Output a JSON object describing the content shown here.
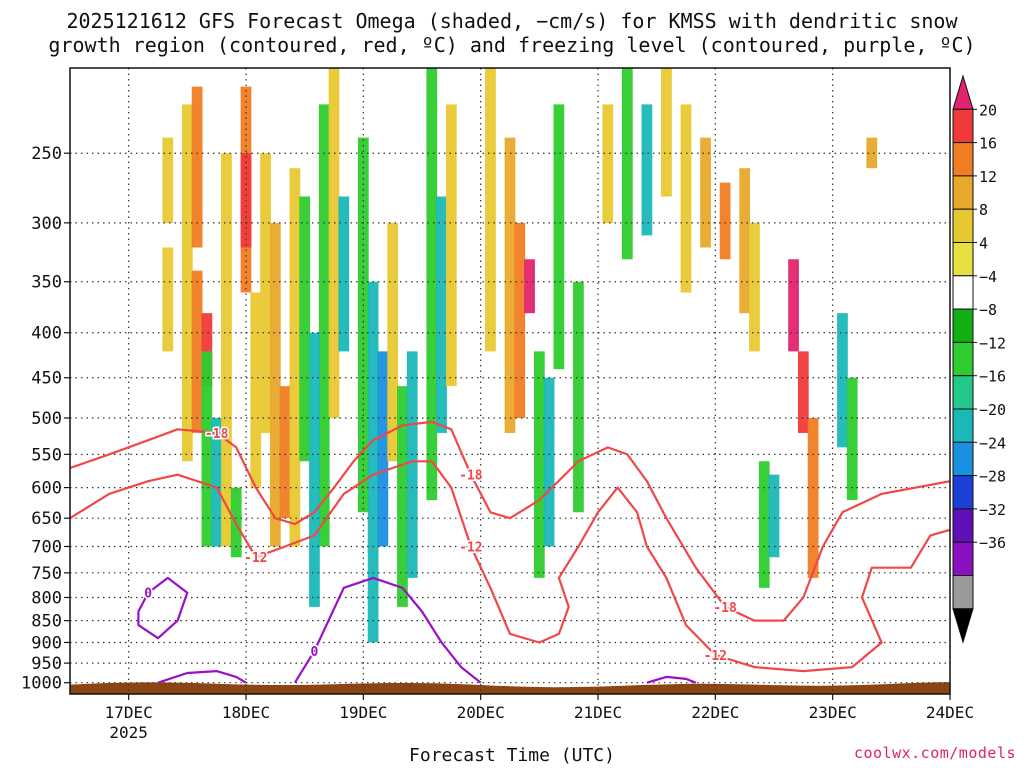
{
  "title": "2025121612 GFS Forecast Omega (shaded, −cm/s) for KMSS with dendritic snow",
  "title_line2": "growth region (contoured, red, ºC) and freezing level (contoured, purple, ºC)",
  "xlabel": "Forecast Time (UTC)",
  "credit": "coolwx.com/models",
  "chart_data": {
    "type": "heatmap",
    "x_axis": {
      "ticks": [
        "17DEC",
        "18DEC",
        "19DEC",
        "20DEC",
        "21DEC",
        "22DEC",
        "23DEC",
        "24DEC"
      ],
      "tick_hours": [
        12,
        36,
        60,
        84,
        108,
        132,
        156,
        180
      ],
      "first_tick_sublabel": "2025",
      "range_hours": [
        0,
        180
      ]
    },
    "y_axis": {
      "ticks": [
        250,
        300,
        350,
        400,
        450,
        500,
        550,
        600,
        650,
        700,
        750,
        800,
        850,
        900,
        950,
        1000
      ],
      "range": [
        200,
        1030
      ],
      "scale": "log",
      "reversed": true
    },
    "grid": true,
    "colorbar": {
      "ticks": [
        "20",
        "16",
        "12",
        "8",
        "4",
        "−4",
        "−8",
        "−12",
        "−16",
        "−20",
        "−24",
        "−28",
        "−32",
        "−36"
      ],
      "colors": [
        "#e0246e",
        "#f03a3a",
        "#f07d22",
        "#e8a82a",
        "#e8c830",
        "#e8e040",
        "#ffffff",
        "#12b012",
        "#2ecc2e",
        "#24c88a",
        "#1ab8b8",
        "#1a90e0",
        "#1a40d8",
        "#6010b8",
        "#8a10c0",
        "#9a9a9a",
        "#000000"
      ]
    },
    "contour_labels": {
      "dgz": [
        "-18",
        "-12"
      ],
      "freezing": [
        "0"
      ]
    },
    "colors": {
      "dgz_contour": "#f04848",
      "freezing_contour": "#9a10c8",
      "terrain": "#8b4513"
    },
    "omega_cells": [
      [
        20,
        240,
        300,
        6
      ],
      [
        20,
        320,
        420,
        6
      ],
      [
        24,
        220,
        560,
        6
      ],
      [
        26,
        210,
        320,
        12
      ],
      [
        26,
        340,
        520,
        12
      ],
      [
        28,
        380,
        460,
        16
      ],
      [
        28,
        420,
        700,
        -10
      ],
      [
        30,
        500,
        700,
        -12
      ],
      [
        32,
        250,
        700,
        6
      ],
      [
        34,
        600,
        720,
        -8
      ],
      [
        36,
        210,
        360,
        12
      ],
      [
        36,
        250,
        320,
        16
      ],
      [
        38,
        360,
        600,
        6
      ],
      [
        40,
        250,
        520,
        6
      ],
      [
        42,
        300,
        700,
        8
      ],
      [
        44,
        460,
        650,
        12
      ],
      [
        46,
        260,
        700,
        6
      ],
      [
        48,
        280,
        560,
        -10
      ],
      [
        52,
        220,
        700,
        -10
      ],
      [
        50,
        400,
        820,
        -12
      ],
      [
        54,
        200,
        500,
        6
      ],
      [
        56,
        280,
        420,
        -14
      ],
      [
        60,
        240,
        640,
        -10
      ],
      [
        62,
        350,
        900,
        -12
      ],
      [
        64,
        420,
        700,
        -16
      ],
      [
        66,
        300,
        560,
        6
      ],
      [
        68,
        460,
        820,
        -8
      ],
      [
        70,
        420,
        760,
        -12
      ],
      [
        74,
        200,
        620,
        -8
      ],
      [
        76,
        280,
        520,
        -14
      ],
      [
        78,
        220,
        460,
        6
      ],
      [
        86,
        200,
        420,
        6
      ],
      [
        90,
        240,
        520,
        8
      ],
      [
        92,
        300,
        500,
        12
      ],
      [
        94,
        330,
        380,
        20
      ],
      [
        96,
        420,
        760,
        -10
      ],
      [
        98,
        450,
        700,
        -12
      ],
      [
        100,
        220,
        440,
        -8
      ],
      [
        104,
        350,
        640,
        -10
      ],
      [
        110,
        220,
        300,
        6
      ],
      [
        114,
        200,
        330,
        -10
      ],
      [
        118,
        220,
        310,
        -12
      ],
      [
        122,
        200,
        280,
        6
      ],
      [
        126,
        220,
        360,
        6
      ],
      [
        130,
        240,
        320,
        8
      ],
      [
        134,
        270,
        330,
        12
      ],
      [
        138,
        260,
        380,
        8
      ],
      [
        140,
        300,
        420,
        6
      ],
      [
        142,
        560,
        780,
        -10
      ],
      [
        144,
        580,
        720,
        -14
      ],
      [
        148,
        330,
        420,
        20
      ],
      [
        150,
        420,
        520,
        16
      ],
      [
        152,
        500,
        760,
        12
      ],
      [
        158,
        380,
        540,
        -14
      ],
      [
        160,
        450,
        620,
        -10
      ],
      [
        164,
        240,
        260,
        8
      ]
    ],
    "dgz_contours": [
      {
        "level": "-18",
        "points": [
          [
            0,
            570
          ],
          [
            8,
            550
          ],
          [
            16,
            530
          ],
          [
            22,
            515
          ],
          [
            30,
            520
          ],
          [
            34,
            540
          ],
          [
            38,
            600
          ],
          [
            42,
            650
          ],
          [
            46,
            660
          ],
          [
            50,
            640
          ],
          [
            54,
            600
          ],
          [
            58,
            560
          ],
          [
            62,
            530
          ],
          [
            68,
            510
          ],
          [
            74,
            505
          ],
          [
            78,
            515
          ],
          [
            82,
            580
          ],
          [
            86,
            640
          ],
          [
            90,
            650
          ],
          [
            96,
            620
          ],
          [
            104,
            560
          ],
          [
            110,
            540
          ],
          [
            114,
            550
          ],
          [
            118,
            590
          ],
          [
            122,
            650
          ],
          [
            128,
            740
          ],
          [
            134,
            820
          ],
          [
            140,
            850
          ],
          [
            146,
            850
          ],
          [
            150,
            800
          ],
          [
            154,
            700
          ],
          [
            158,
            640
          ],
          [
            166,
            610
          ],
          [
            180,
            590
          ]
        ]
      },
      {
        "level": "-12",
        "points": [
          [
            0,
            650
          ],
          [
            8,
            610
          ],
          [
            16,
            590
          ],
          [
            22,
            580
          ],
          [
            30,
            600
          ],
          [
            34,
            660
          ],
          [
            38,
            720
          ],
          [
            44,
            700
          ],
          [
            50,
            680
          ],
          [
            56,
            610
          ],
          [
            62,
            580
          ],
          [
            70,
            560
          ],
          [
            74,
            560
          ],
          [
            78,
            600
          ],
          [
            82,
            700
          ],
          [
            86,
            780
          ],
          [
            90,
            880
          ],
          [
            96,
            900
          ],
          [
            100,
            880
          ],
          [
            102,
            820
          ],
          [
            100,
            760
          ],
          [
            104,
            700
          ],
          [
            108,
            640
          ],
          [
            112,
            600
          ],
          [
            116,
            640
          ],
          [
            118,
            700
          ],
          [
            122,
            760
          ],
          [
            126,
            860
          ],
          [
            132,
            930
          ],
          [
            140,
            960
          ],
          [
            150,
            970
          ],
          [
            160,
            960
          ],
          [
            166,
            900
          ],
          [
            162,
            800
          ],
          [
            164,
            740
          ],
          [
            172,
            740
          ],
          [
            176,
            680
          ],
          [
            180,
            670
          ]
        ]
      }
    ],
    "freezing_contours": [
      {
        "level": "0",
        "points": [
          [
            14,
            830
          ],
          [
            16,
            790
          ],
          [
            20,
            760
          ],
          [
            24,
            790
          ],
          [
            22,
            850
          ],
          [
            18,
            890
          ],
          [
            14,
            860
          ],
          [
            14,
            830
          ]
        ]
      },
      {
        "level": "0",
        "points": [
          [
            46,
            1000
          ],
          [
            50,
            920
          ],
          [
            56,
            780
          ],
          [
            62,
            760
          ],
          [
            68,
            780
          ],
          [
            72,
            830
          ],
          [
            76,
            900
          ],
          [
            80,
            960
          ],
          [
            84,
            1000
          ]
        ]
      },
      {
        "level": "0",
        "points": [
          [
            18,
            1000
          ],
          [
            24,
            975
          ],
          [
            30,
            970
          ],
          [
            34,
            985
          ],
          [
            36,
            1000
          ]
        ]
      },
      {
        "level": "0",
        "points": [
          [
            118,
            1000
          ],
          [
            122,
            985
          ],
          [
            126,
            990
          ],
          [
            128,
            1000
          ]
        ]
      }
    ]
  }
}
